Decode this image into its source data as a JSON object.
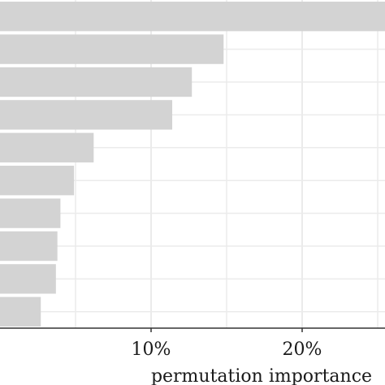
{
  "chart_data": {
    "type": "bar",
    "orientation": "horizontal",
    "values": [
      0.255,
      0.148,
      0.127,
      0.114,
      0.062,
      0.049,
      0.04,
      0.038,
      0.037,
      0.027
    ],
    "xlim": [
      0,
      0.255
    ],
    "xticks": [
      0.1,
      0.2
    ],
    "xtick_labels": [
      "10%",
      "20%"
    ],
    "xlabel": "permutation importance",
    "grid": true,
    "bar_color": "#d3d3d3",
    "grid_color": "#ebebeb",
    "axis_color": "#333333"
  }
}
